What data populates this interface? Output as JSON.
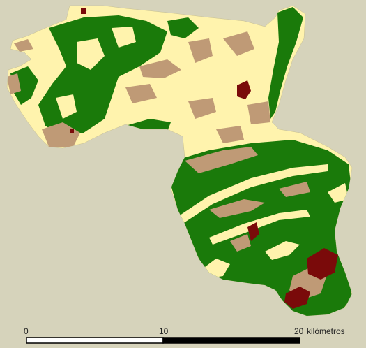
{
  "scale": {
    "ticks": [
      "0",
      "10",
      "20"
    ],
    "unit": "kilómetros"
  },
  "colors": {
    "background": "#d6d3bb",
    "cropland": "#fff3ad",
    "forest": "#1a7a0a",
    "scrubland": "#bf9a76",
    "urban": "#7a0a0a",
    "scalebar": "#000000"
  }
}
